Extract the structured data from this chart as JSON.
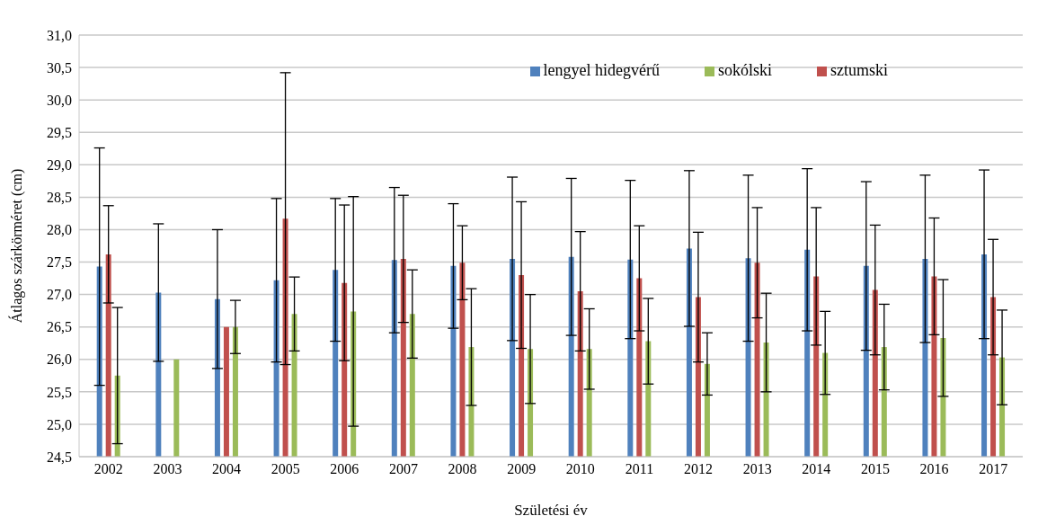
{
  "chart_data": {
    "type": "bar",
    "xlabel": "Születési év",
    "ylabel": "Átlagos szárkörméret (cm)",
    "categories": [
      "2002",
      "2003",
      "2004",
      "2005",
      "2006",
      "2007",
      "2008",
      "2009",
      "2010",
      "2011",
      "2012",
      "2013",
      "2014",
      "2015",
      "2016",
      "2017"
    ],
    "series": [
      {
        "name": "lengyel hidegvérű",
        "color": "#4f81bd",
        "values": [
          27.43,
          27.03,
          26.93,
          27.22,
          27.38,
          27.53,
          27.44,
          27.55,
          27.58,
          27.54,
          27.71,
          27.56,
          27.69,
          27.44,
          27.55,
          27.62
        ],
        "errors": [
          1.83,
          1.06,
          1.07,
          1.26,
          1.1,
          1.12,
          0.96,
          1.26,
          1.21,
          1.22,
          1.2,
          1.28,
          1.25,
          1.3,
          1.29,
          1.3
        ]
      },
      {
        "name": "sztumski",
        "color": "#c0504d",
        "values": [
          27.62,
          null,
          26.5,
          28.17,
          27.18,
          27.55,
          27.49,
          27.3,
          27.05,
          27.25,
          26.96,
          27.49,
          27.28,
          27.07,
          27.28,
          26.96
        ],
        "errors": [
          0.75,
          null,
          null,
          2.25,
          1.2,
          0.98,
          0.57,
          1.13,
          0.92,
          0.81,
          1.0,
          0.85,
          1.06,
          1.0,
          0.9,
          0.89
        ]
      },
      {
        "name": "sokólski",
        "color": "#9bbb59",
        "values": [
          25.75,
          26.0,
          26.5,
          26.7,
          26.74,
          26.7,
          26.19,
          26.16,
          26.16,
          26.28,
          25.93,
          26.26,
          26.1,
          26.19,
          26.33,
          26.03
        ],
        "errors": [
          1.05,
          null,
          0.41,
          0.57,
          1.77,
          0.68,
          0.9,
          0.84,
          0.62,
          0.66,
          0.48,
          0.76,
          0.64,
          0.66,
          0.9,
          0.73
        ]
      }
    ],
    "ylim": [
      24.5,
      31.0
    ],
    "yticks": [
      {
        "value": 24.5,
        "label": "24,5"
      },
      {
        "value": 25.0,
        "label": "25,0"
      },
      {
        "value": 25.5,
        "label": "25,5"
      },
      {
        "value": 26.0,
        "label": "26,0"
      },
      {
        "value": 26.5,
        "label": "26,5"
      },
      {
        "value": 27.0,
        "label": "27,0"
      },
      {
        "value": 27.5,
        "label": "27,5"
      },
      {
        "value": 28.0,
        "label": "28,0"
      },
      {
        "value": 28.5,
        "label": "28,5"
      },
      {
        "value": 29.0,
        "label": "29,0"
      },
      {
        "value": 29.5,
        "label": "29,5"
      },
      {
        "value": 30.0,
        "label": "30,0"
      },
      {
        "value": 30.5,
        "label": "30,5"
      },
      {
        "value": 31.0,
        "label": "31,0"
      }
    ],
    "grid": "y",
    "legend": "top right"
  }
}
